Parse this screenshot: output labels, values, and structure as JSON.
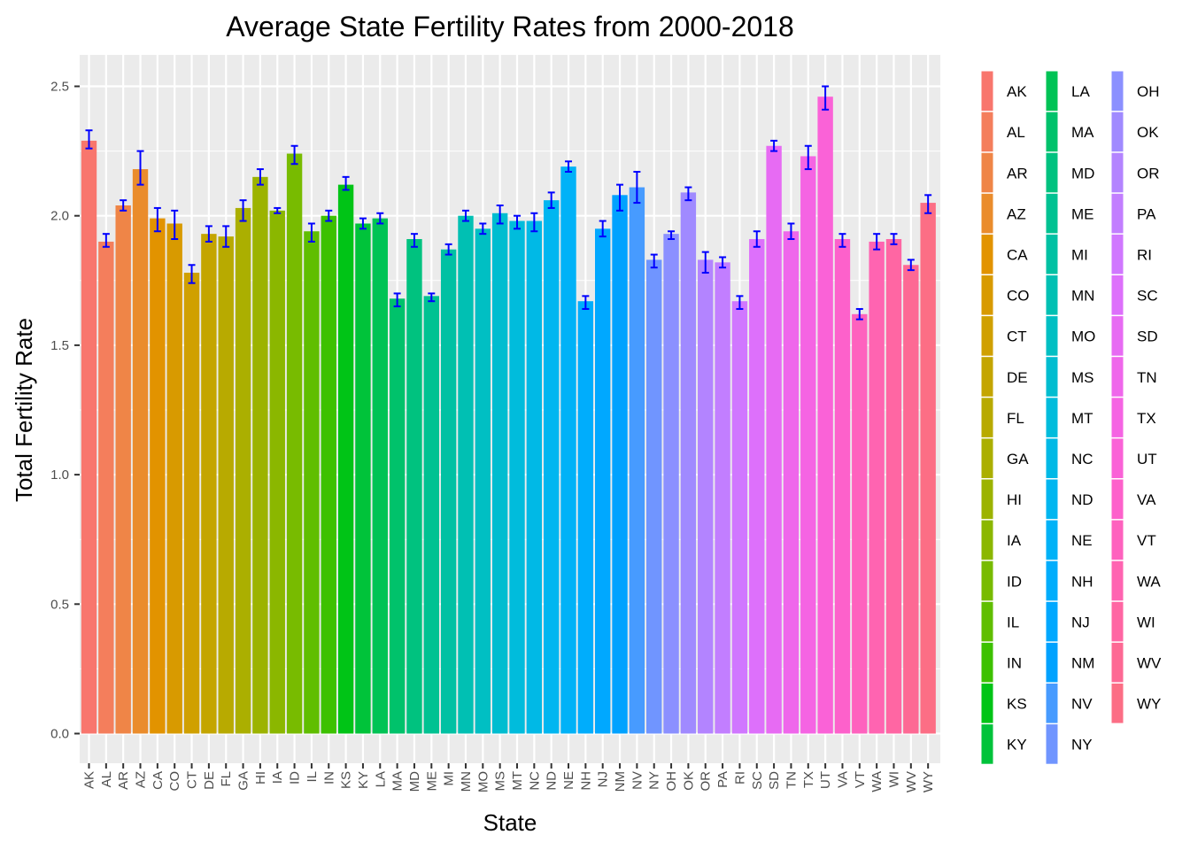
{
  "chart_data": {
    "type": "bar",
    "title": "Average State Fertility Rates from 2000-2018",
    "xlabel": "State",
    "ylabel": "Total Fertility Rate",
    "ylim": [
      0,
      2.6
    ],
    "yticks": [
      "0.0",
      "0.5",
      "1.0",
      "1.5",
      "2.0",
      "2.5"
    ],
    "grid": true,
    "legend_position": "right",
    "error_bar_color": "#0000ff",
    "categories": [
      "AK",
      "AL",
      "AR",
      "AZ",
      "CA",
      "CO",
      "CT",
      "DE",
      "FL",
      "GA",
      "HI",
      "IA",
      "ID",
      "IL",
      "IN",
      "KS",
      "KY",
      "LA",
      "MA",
      "MD",
      "ME",
      "MI",
      "MN",
      "MO",
      "MS",
      "MT",
      "NC",
      "ND",
      "NE",
      "NH",
      "NJ",
      "NM",
      "NV",
      "NY",
      "OH",
      "OK",
      "OR",
      "PA",
      "RI",
      "SC",
      "SD",
      "TN",
      "TX",
      "UT",
      "VA",
      "VT",
      "WA",
      "WI",
      "WV",
      "WY"
    ],
    "values": [
      2.29,
      1.9,
      2.04,
      2.18,
      1.99,
      1.97,
      1.78,
      1.93,
      1.92,
      2.03,
      2.15,
      2.02,
      2.24,
      1.94,
      2.0,
      2.12,
      1.97,
      1.99,
      1.68,
      1.91,
      1.69,
      1.87,
      2.0,
      1.95,
      2.01,
      1.98,
      1.98,
      2.06,
      2.19,
      1.67,
      1.95,
      2.08,
      2.11,
      1.83,
      1.93,
      2.09,
      1.83,
      1.82,
      1.67,
      1.91,
      2.27,
      1.94,
      2.23,
      2.46,
      1.91,
      1.62,
      1.9,
      1.91,
      1.81,
      2.05
    ],
    "error_low": [
      2.26,
      1.88,
      2.02,
      2.12,
      1.94,
      1.91,
      1.74,
      1.9,
      1.88,
      1.98,
      2.12,
      2.01,
      2.2,
      1.9,
      1.98,
      2.1,
      1.95,
      1.97,
      1.65,
      1.88,
      1.67,
      1.85,
      1.98,
      1.93,
      1.97,
      1.95,
      1.94,
      2.03,
      2.17,
      1.64,
      1.92,
      2.02,
      2.05,
      1.8,
      1.91,
      2.06,
      1.78,
      1.8,
      1.64,
      1.88,
      2.25,
      1.91,
      2.18,
      2.41,
      1.88,
      1.6,
      1.87,
      1.89,
      1.79,
      2.01
    ],
    "error_high": [
      2.33,
      1.93,
      2.06,
      2.25,
      2.03,
      2.02,
      1.81,
      1.96,
      1.96,
      2.06,
      2.18,
      2.03,
      2.27,
      1.97,
      2.02,
      2.15,
      1.99,
      2.01,
      1.7,
      1.93,
      1.7,
      1.89,
      2.02,
      1.97,
      2.04,
      2.0,
      2.01,
      2.09,
      2.21,
      1.69,
      1.98,
      2.12,
      2.17,
      1.85,
      1.94,
      2.11,
      1.86,
      1.84,
      1.69,
      1.94,
      2.29,
      1.97,
      2.27,
      2.5,
      1.93,
      1.64,
      1.93,
      1.93,
      1.83,
      2.08
    ],
    "colors": [
      "#F8766D",
      "#F47E5C",
      "#EF8547",
      "#EA8C2C",
      "#E29300",
      "#D89A00",
      "#D0A000",
      "#C4A500",
      "#B8AA00",
      "#ABAF00",
      "#9CB300",
      "#8BB700",
      "#78BB00",
      "#60BE00",
      "#3DC100",
      "#00C416",
      "#00C33A",
      "#00C355",
      "#00C26B",
      "#00C27F",
      "#00C292",
      "#00C1A3",
      "#00C0B3",
      "#00BFC3",
      "#00BDD0",
      "#00BCDC",
      "#00B9E6",
      "#00B6F0",
      "#00B2F7",
      "#00ADFC",
      "#00A8FF",
      "#00A2FF",
      "#479BFF",
      "#7095FF",
      "#8B90FF",
      "#A08AFF",
      "#B384FF",
      "#C27EFF",
      "#D077FF",
      "#DD70FB",
      "#E76BF3",
      "#EF67EB",
      "#F564E3",
      "#FA62D7",
      "#FD61CB",
      "#FE62BE",
      "#FF64B1",
      "#FF66A3",
      "#FD6994",
      "#FC6E85"
    ]
  }
}
